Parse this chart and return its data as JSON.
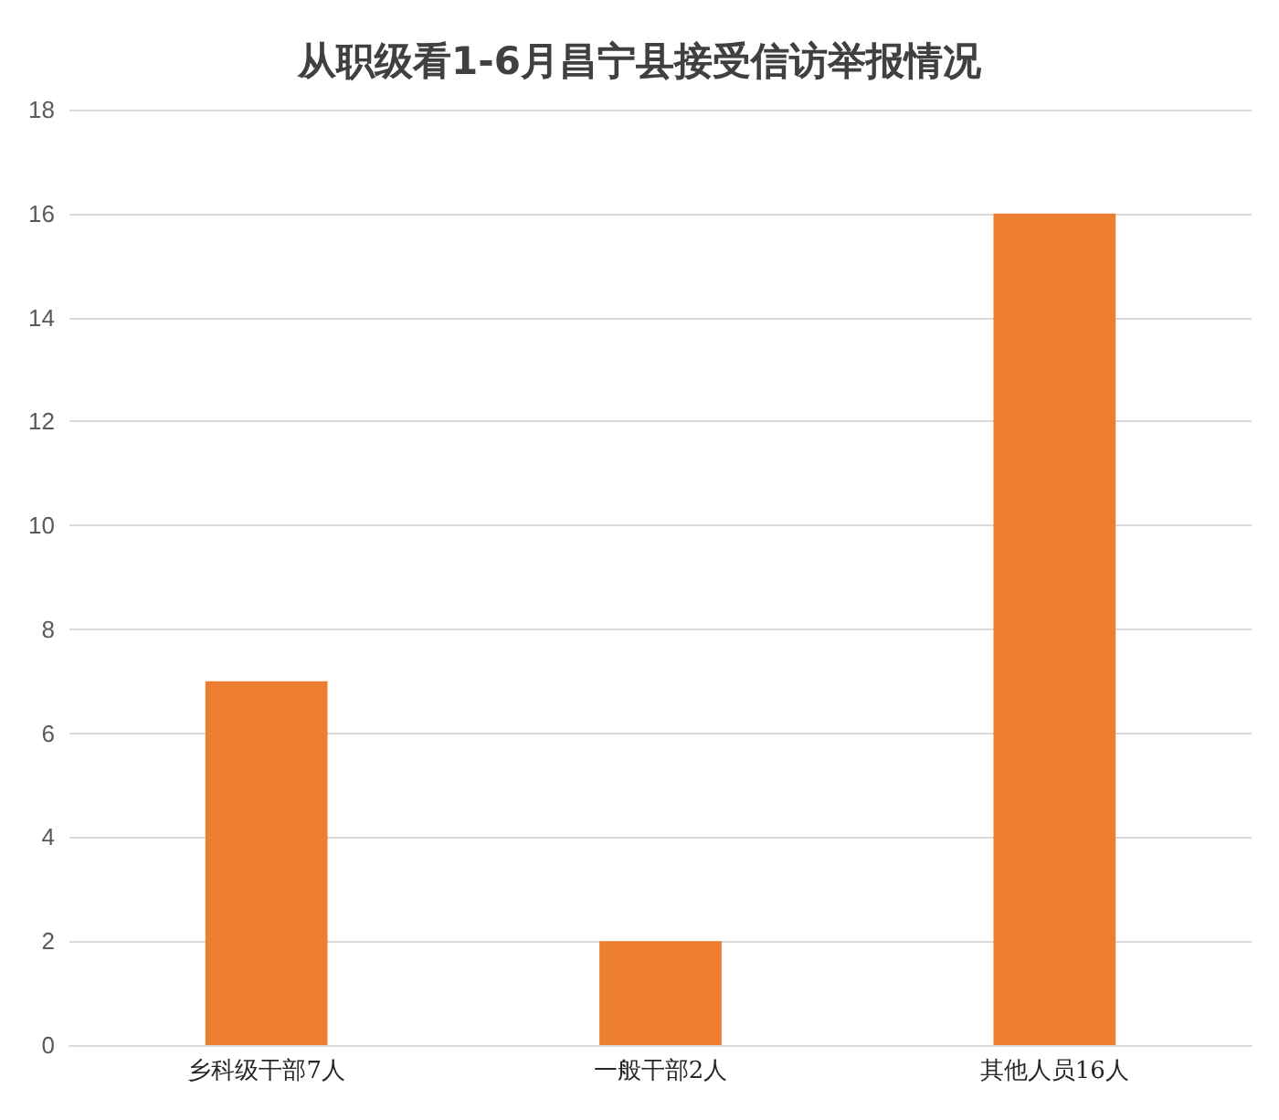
{
  "chart_data": {
    "type": "bar",
    "title": "从职级看1-6月昌宁县接受信访举报情况",
    "categories": [
      "乡科级干部7人",
      "一般干部2人",
      "其他人员16人"
    ],
    "values": [
      7,
      2,
      16
    ],
    "color": "#ed7d31",
    "ylim": [
      0,
      18
    ],
    "yticks": [
      0,
      2,
      4,
      6,
      8,
      10,
      12,
      14,
      16,
      18
    ],
    "grid": "y"
  }
}
